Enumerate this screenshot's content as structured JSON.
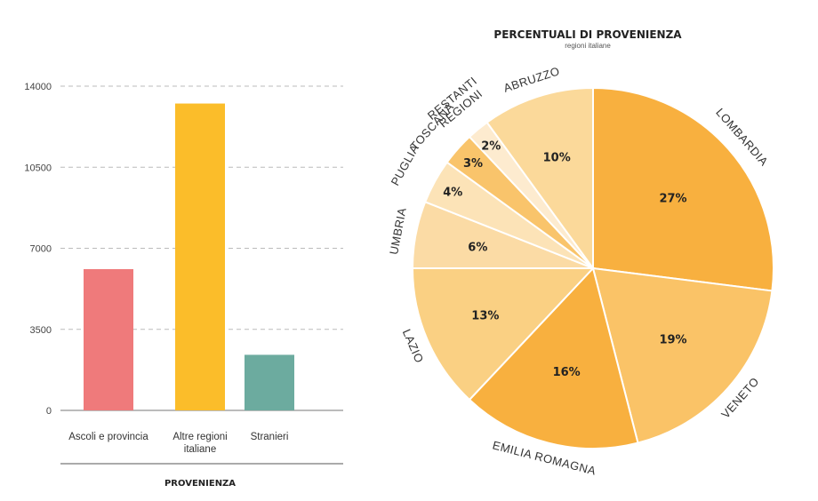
{
  "chart_data": [
    {
      "type": "bar",
      "categories": [
        "Ascoli e provincia",
        "Altre regioni italiane",
        "Stranieri"
      ],
      "category_lines": [
        [
          "Ascoli e provincia"
        ],
        [
          "Altre regioni",
          "italiane"
        ],
        [
          "Stranieri"
        ]
      ],
      "values": [
        6100,
        13250,
        2400
      ],
      "colors": [
        "#ef7a7b",
        "#fbbd2a",
        "#6cab9f"
      ],
      "ylim": [
        0,
        14000
      ],
      "yticks": [
        "0",
        "3500",
        "7000",
        "10500",
        "14000"
      ],
      "ytick_values": [
        0,
        3500,
        7000,
        10500,
        14000
      ],
      "xlabel": "PROVENIENZA",
      "ylabel": "",
      "grid": true
    },
    {
      "type": "pie",
      "title": "PERCENTUALI DI PROVENIENZA",
      "subtitle": "regioni italiane",
      "slices": [
        {
          "label": "LOMBARDIA",
          "value": 27,
          "pct_label": "27%",
          "color": "#f8b03f"
        },
        {
          "label": "VENETO",
          "value": 19,
          "pct_label": "19%",
          "color": "#fac367"
        },
        {
          "label": "EMILIA ROMAGNA",
          "value": 16,
          "pct_label": "16%",
          "color": "#f8b03f"
        },
        {
          "label": "LAZIO",
          "value": 13,
          "pct_label": "13%",
          "color": "#fad083"
        },
        {
          "label": "UMBRIA",
          "value": 6,
          "pct_label": "6%",
          "color": "#fbdba5"
        },
        {
          "label": "PUGLIA",
          "value": 4,
          "pct_label": "4%",
          "color": "#fce3b7"
        },
        {
          "label": "TOSCANA",
          "value": 3,
          "pct_label": "3%",
          "color": "#f9c46b"
        },
        {
          "label": "RESTANTI REGIONI",
          "value": 2,
          "pct_label": "2%",
          "color": "#fdebcf"
        },
        {
          "label": "ABRUZZO",
          "value": 10,
          "pct_label": "10%",
          "color": "#fbd99a"
        }
      ]
    }
  ]
}
